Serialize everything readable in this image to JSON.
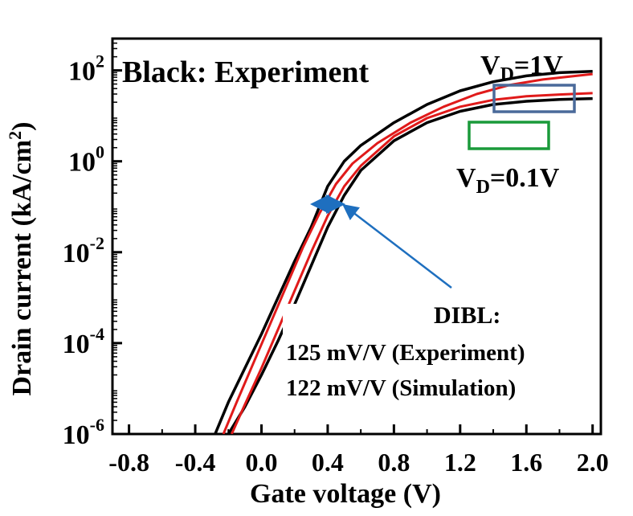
{
  "chart_data": {
    "type": "line",
    "xlabel": "Gate voltage (V)",
    "ylabel": "Drain current (kA/cm",
    "ylabel_sup": "2",
    "ylabel_close": ")",
    "xlim": [
      -0.9,
      2.05
    ],
    "ylim_log10": [
      -6,
      2.7
    ],
    "y_scale": "log",
    "grid": false,
    "x_ticks": [
      "-0.8",
      "-0.4",
      "0.0",
      "0.4",
      "0.8",
      "1.2",
      "1.6",
      "2.0"
    ],
    "x_tick_values": [
      -0.8,
      -0.4,
      0.0,
      0.4,
      0.8,
      1.2,
      1.6,
      2.0
    ],
    "y_ticks": [
      {
        "base": "10",
        "exp": "2",
        "log": 2
      },
      {
        "base": "10",
        "exp": "0",
        "log": 0
      },
      {
        "base": "10",
        "exp": "-2",
        "log": -2
      },
      {
        "base": "10",
        "exp": "-4",
        "log": -4
      },
      {
        "base": "10",
        "exp": "-6",
        "log": -6
      }
    ],
    "series": [
      {
        "color": "#000000",
        "style": "experiment",
        "x": [
          -0.28,
          -0.2,
          -0.1,
          0.0,
          0.1,
          0.2,
          0.3,
          0.4,
          0.5,
          0.6,
          0.8,
          1.0,
          1.2,
          1.4,
          1.6,
          1.8,
          2.0
        ],
        "y_log10": [
          -6.0,
          -5.3,
          -4.55,
          -3.8,
          -3.0,
          -2.2,
          -1.45,
          -0.55,
          0.0,
          0.35,
          0.85,
          1.25,
          1.55,
          1.75,
          1.88,
          1.95,
          1.98
        ]
      },
      {
        "color": "#000000",
        "style": "experiment",
        "x": [
          -0.2,
          -0.1,
          0.0,
          0.1,
          0.2,
          0.3,
          0.4,
          0.5,
          0.6,
          0.8,
          1.0,
          1.2,
          1.4,
          1.6,
          1.8,
          2.0
        ],
        "y_log10": [
          -6.0,
          -5.4,
          -4.7,
          -3.95,
          -3.15,
          -2.3,
          -1.45,
          -0.75,
          -0.2,
          0.45,
          0.85,
          1.1,
          1.25,
          1.32,
          1.36,
          1.38
        ]
      },
      {
        "color": "#e01a1a",
        "style": "simulation",
        "x": [
          -0.23,
          -0.15,
          -0.05,
          0.05,
          0.15,
          0.25,
          0.35,
          0.45,
          0.55,
          0.7,
          0.9,
          1.1,
          1.3,
          1.5,
          1.7,
          2.0
        ],
        "y_log10": [
          -6.0,
          -5.3,
          -4.45,
          -3.6,
          -2.75,
          -1.9,
          -1.15,
          -0.5,
          -0.05,
          0.4,
          0.85,
          1.2,
          1.48,
          1.68,
          1.8,
          1.92
        ]
      },
      {
        "color": "#e01a1a",
        "style": "simulation",
        "x": [
          -0.18,
          -0.1,
          0.0,
          0.1,
          0.2,
          0.3,
          0.4,
          0.5,
          0.6,
          0.8,
          1.0,
          1.2,
          1.4,
          1.6,
          1.8,
          2.0
        ],
        "y_log10": [
          -6.0,
          -5.35,
          -4.55,
          -3.7,
          -2.85,
          -2.0,
          -1.2,
          -0.55,
          -0.1,
          0.55,
          0.95,
          1.2,
          1.35,
          1.43,
          1.47,
          1.5
        ]
      }
    ],
    "annotations": {
      "legend_note": "Black: Experiment",
      "vd_high": "V",
      "vd_high_sub": "D",
      "vd_high_val": "=1V",
      "vd_low": "V",
      "vd_low_sub": "D",
      "vd_low_val": "=0.1V",
      "dibl_title": "DIBL:",
      "dibl_exp": "125 mV/V (Experiment)",
      "dibl_sim": "122 mV/V (Simulation)"
    },
    "colors": {
      "experiment": "#000000",
      "simulation": "#e01a1a",
      "box_vd_high": "#4a6a9a",
      "box_vd_low": "#1a9a3a",
      "arrow": "#1e6fbf",
      "dibl_title": "#1e6fbf"
    }
  }
}
